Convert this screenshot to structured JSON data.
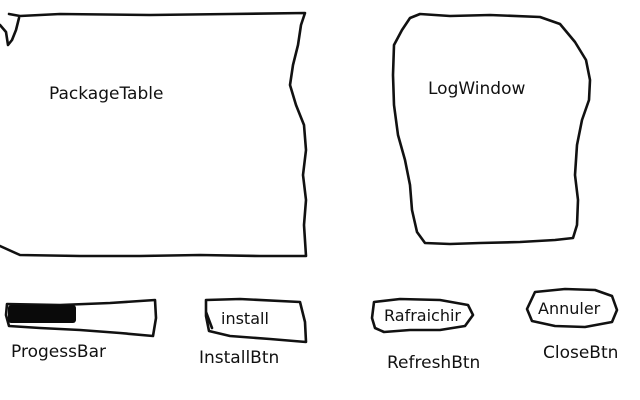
{
  "package_table": {
    "label": "PackageTable"
  },
  "log_window": {
    "label": "LogWindow"
  },
  "progress_bar": {
    "label": "ProgessBar",
    "value_fraction": 0.46
  },
  "install_button": {
    "text": "install",
    "label": "InstallBtn"
  },
  "refresh_button": {
    "text": "Rafraichir",
    "label": "RefreshBtn"
  },
  "close_button": {
    "text": "Annuler",
    "label": "CloseBtn"
  },
  "colors": {
    "ink": "#111111",
    "background": "#ffffff"
  }
}
